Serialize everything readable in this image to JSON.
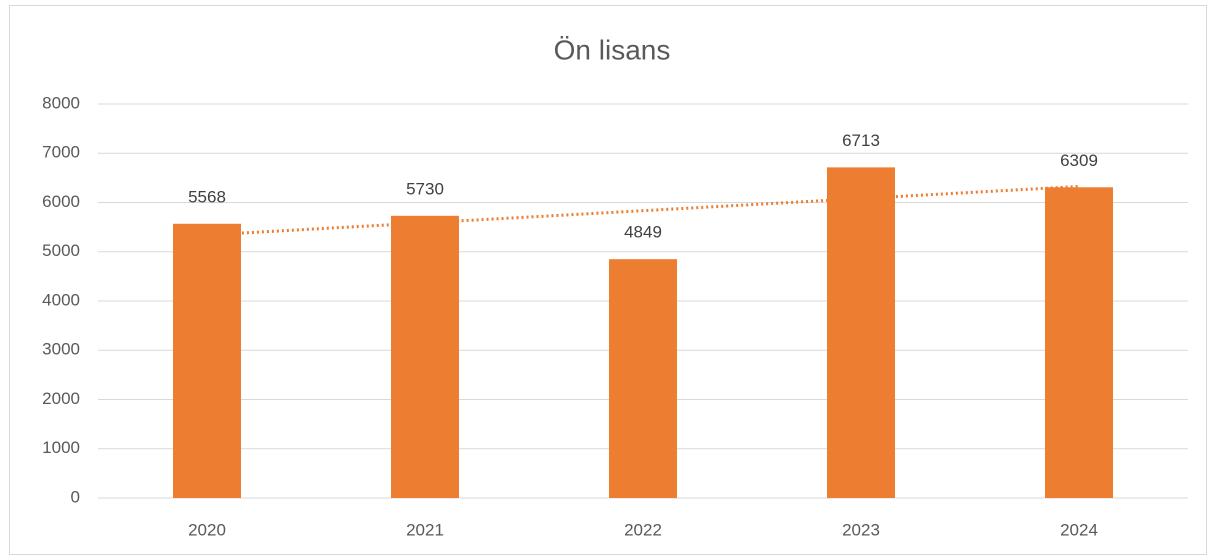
{
  "chart_data": {
    "type": "bar",
    "title": "Ön lisans",
    "categories": [
      "2020",
      "2021",
      "2022",
      "2023",
      "2024"
    ],
    "values": [
      5568,
      5730,
      4849,
      6713,
      6309
    ],
    "color": "#ed7d31",
    "ylim": [
      0,
      8000
    ],
    "yticks": [
      0,
      1000,
      2000,
      3000,
      4000,
      5000,
      6000,
      7000,
      8000
    ],
    "grid": true,
    "data_labels": true,
    "trendline": "linear",
    "trendline_color": "#ed7d31"
  }
}
